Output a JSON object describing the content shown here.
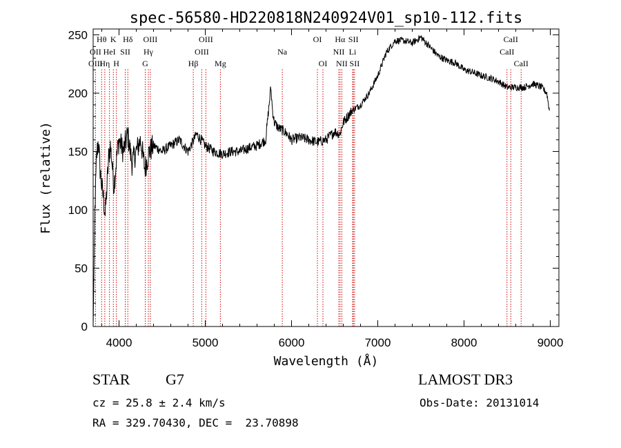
{
  "chart_data": {
    "type": "line",
    "title": "spec-56580-HD220818N240924V01_sp10-112.fits",
    "xlabel": "Wavelength (Å)",
    "ylabel": "Flux (relative)",
    "xlim": [
      3700,
      9100
    ],
    "ylim": [
      0,
      255
    ],
    "xticks": [
      4000,
      5000,
      6000,
      7000,
      8000,
      9000
    ],
    "yticks": [
      0,
      50,
      100,
      150,
      200,
      250
    ],
    "grid": false,
    "series": [
      {
        "x": [
          3700,
          3720,
          3740,
          3760,
          3780,
          3800,
          3820,
          3840,
          3860,
          3880,
          3900,
          3920,
          3940,
          3960,
          3980,
          4000,
          4050,
          4100,
          4150,
          4200,
          4250,
          4300,
          4350,
          4400,
          4500,
          4600,
          4700,
          4800,
          4900,
          5000,
          5100,
          5200,
          5300,
          5400,
          5500,
          5600,
          5700,
          5760,
          5780,
          5800,
          5850,
          5900,
          5950,
          6000,
          6100,
          6200,
          6300,
          6400,
          6500,
          6560,
          6600,
          6650,
          6700,
          6800,
          6900,
          7000,
          7100,
          7200,
          7300,
          7400,
          7500,
          7600,
          7700,
          7800,
          7900,
          8000,
          8100,
          8200,
          8300,
          8400,
          8500,
          8600,
          8700,
          8800,
          8900,
          8960,
          8990
        ],
        "y": [
          0,
          100,
          145,
          160,
          135,
          120,
          110,
          95,
          120,
          145,
          155,
          140,
          120,
          135,
          150,
          160,
          150,
          165,
          140,
          150,
          160,
          135,
          150,
          155,
          150,
          155,
          160,
          150,
          165,
          155,
          150,
          148,
          150,
          150,
          153,
          155,
          160,
          205,
          185,
          175,
          170,
          168,
          165,
          160,
          162,
          160,
          158,
          160,
          167,
          165,
          175,
          180,
          185,
          190,
          200,
          215,
          235,
          245,
          245,
          243,
          248,
          240,
          232,
          228,
          226,
          220,
          218,
          215,
          213,
          210,
          205,
          205,
          205,
          208,
          205,
          200,
          185
        ]
      }
    ],
    "line_labels": [
      {
        "name": "Hθ",
        "row": 1,
        "x": 3798
      },
      {
        "name": "K",
        "row": 1,
        "x": 3934
      },
      {
        "name": "Hδ",
        "row": 1,
        "x": 4102
      },
      {
        "name": "OIII",
        "row": 1,
        "x": 4363
      },
      {
        "name": "OIII",
        "row": 1,
        "x": 5007
      },
      {
        "name": "OI",
        "row": 1,
        "x": 6300
      },
      {
        "name": "Hα",
        "row": 1,
        "x": 6563
      },
      {
        "name": "SII",
        "row": 1,
        "x": 6717
      },
      {
        "name": "CaII",
        "row": 1,
        "x": 8542
      },
      {
        "name": "OII",
        "row": 2,
        "x": 3727
      },
      {
        "name": "HeI",
        "row": 2,
        "x": 3889
      },
      {
        "name": "SII",
        "row": 2,
        "x": 4072
      },
      {
        "name": "Hγ",
        "row": 2,
        "x": 4340
      },
      {
        "name": "OIII",
        "row": 2,
        "x": 4959
      },
      {
        "name": "Na",
        "row": 2,
        "x": 5893
      },
      {
        "name": "NII",
        "row": 2,
        "x": 6548
      },
      {
        "name": "Li",
        "row": 2,
        "x": 6708
      },
      {
        "name": "CaII",
        "row": 2,
        "x": 8498
      },
      {
        "name": "OIII",
        "row": 3,
        "x": 3727
      },
      {
        "name": "Hη",
        "row": 3,
        "x": 3835
      },
      {
        "name": "H",
        "row": 3,
        "x": 3969
      },
      {
        "name": "G",
        "row": 3,
        "x": 4304
      },
      {
        "name": "Hβ",
        "row": 3,
        "x": 4861
      },
      {
        "name": "Mg",
        "row": 3,
        "x": 5175
      },
      {
        "name": "OI",
        "row": 3,
        "x": 6364
      },
      {
        "name": "NII",
        "row": 3,
        "x": 6583
      },
      {
        "name": "SII",
        "row": 3,
        "x": 6731
      },
      {
        "name": "CaII",
        "row": 3,
        "x": 8662
      }
    ],
    "line_marker_color": "#cc0000"
  },
  "info": {
    "object_class": "STAR",
    "subclass": "G7",
    "survey": "LAMOST DR3",
    "redshift": "cz = 25.8 ± 2.4 km/s",
    "obs_date": "Obs-Date: 20131014",
    "coordinates": "RA = 329.70430, DEC =  23.70898"
  }
}
